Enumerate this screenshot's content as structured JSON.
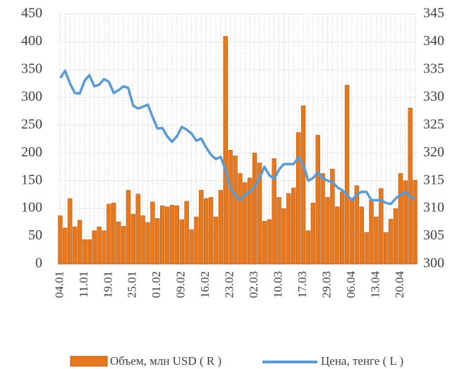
{
  "chart_data": {
    "type": "bar_line",
    "categories": [
      "04.01",
      null,
      null,
      null,
      null,
      "11.01",
      null,
      null,
      null,
      null,
      "19.01",
      null,
      null,
      null,
      null,
      "25.01",
      null,
      null,
      null,
      null,
      "01.02",
      null,
      null,
      null,
      null,
      "09.02",
      null,
      null,
      null,
      null,
      "16.02",
      null,
      null,
      null,
      null,
      "23.02",
      null,
      null,
      null,
      null,
      "02.03",
      null,
      null,
      null,
      null,
      "10.03",
      null,
      null,
      null,
      null,
      "17.03",
      null,
      null,
      null,
      null,
      "29.03",
      null,
      null,
      null,
      null,
      "06.04",
      null,
      null,
      null,
      null,
      "13.04",
      null,
      null,
      null,
      null,
      "20.04",
      null,
      null,
      null
    ],
    "series": [
      {
        "name": "Объем, млн USD ( R )",
        "color": "#e8781e",
        "values": [
          87,
          65,
          118,
          67,
          79,
          44,
          44,
          60,
          67,
          60,
          108,
          110,
          76,
          68,
          133,
          90,
          126,
          87,
          75,
          112,
          82,
          105,
          103,
          106,
          105,
          80,
          113,
          62,
          85,
          133,
          118,
          120,
          85,
          133,
          410,
          205,
          195,
          163,
          147,
          155,
          200,
          182,
          77,
          80,
          190,
          120,
          100,
          127,
          137,
          237,
          285,
          60,
          110,
          232,
          163,
          120,
          171,
          103,
          130,
          322,
          117,
          141,
          103,
          57,
          115,
          85,
          136,
          57,
          81,
          100,
          163,
          150,
          281,
          151
        ]
      },
      {
        "name": "Цена, тенге ( L )",
        "color": "#5b9bd5",
        "axis": "y2",
        "values": [
          333.5,
          334.8,
          332.5,
          330.8,
          330.7,
          333,
          334,
          332,
          332.3,
          333.3,
          332.8,
          330.8,
          331.3,
          332,
          331.7,
          328.5,
          328,
          328.3,
          328.7,
          326.5,
          324.4,
          324.5,
          323,
          322,
          323,
          324.7,
          324.2,
          323.5,
          322.2,
          322.6,
          321,
          319.7,
          318.9,
          319.3,
          317,
          313.5,
          312.5,
          311.5,
          312.5,
          313,
          314,
          315.5,
          317.5,
          316,
          315.3,
          317,
          318,
          318,
          318,
          319.2,
          318,
          315,
          315.5,
          316.5,
          315.5,
          315,
          314.8,
          313.8,
          313.3,
          312.5,
          311.5,
          312.5,
          313,
          313,
          311.5,
          311.5,
          311.5,
          311,
          310.8,
          311.8,
          312.5,
          313,
          312.2,
          311.6
        ]
      }
    ],
    "ylim": [
      0,
      450
    ],
    "yticks": [
      0,
      50,
      100,
      150,
      200,
      250,
      300,
      350,
      400,
      450
    ],
    "y2lim": [
      300,
      345
    ],
    "y2ticks": [
      300,
      305,
      310,
      315,
      320,
      325,
      330,
      335,
      340,
      345
    ],
    "grid": true
  }
}
